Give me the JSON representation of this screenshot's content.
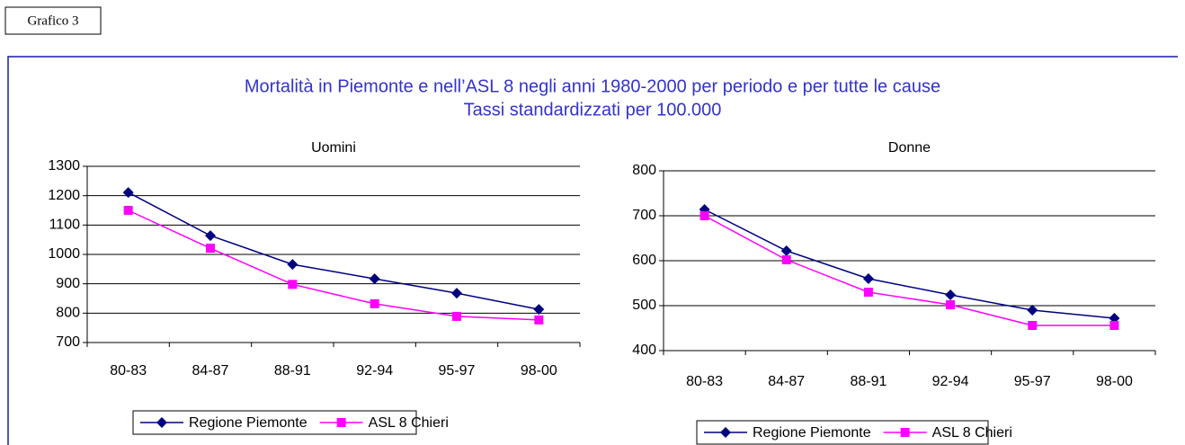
{
  "label": "Grafico 3",
  "title": "Mortalità in Piemonte e nell’ASL 8 negli anni 1980-2000 per periodo e per tutte le cause",
  "subtitle": "Tassi standardizzati per 100.000",
  "chart_data": [
    {
      "type": "line",
      "title": "Uomini",
      "categories": [
        "80-83",
        "84-87",
        "88-91",
        "92-94",
        "95-97",
        "98-00"
      ],
      "series": [
        {
          "name": "Regione Piemonte",
          "color": "#000080",
          "marker": "diamond",
          "values": [
            1211,
            1064,
            966,
            917,
            868,
            813
          ]
        },
        {
          "name": "ASL 8 Chieri",
          "color": "#ff00ff",
          "marker": "square",
          "values": [
            1150,
            1021,
            898,
            832,
            789,
            777
          ]
        }
      ],
      "ylim": [
        700,
        1300
      ],
      "yticks": [
        700,
        800,
        900,
        1000,
        1100,
        1200,
        1300
      ],
      "grid": true,
      "legend": "bottom"
    },
    {
      "type": "line",
      "title": "Donne",
      "categories": [
        "80-83",
        "84-87",
        "88-91",
        "92-94",
        "95-97",
        "98-00"
      ],
      "series": [
        {
          "name": "Regione Piemonte",
          "color": "#000080",
          "marker": "diamond",
          "values": [
            714,
            622,
            560,
            524,
            490,
            472
          ]
        },
        {
          "name": "ASL 8 Chieri",
          "color": "#ff00ff",
          "marker": "square",
          "values": [
            700,
            602,
            530,
            502,
            456,
            456
          ]
        }
      ],
      "ylim": [
        400,
        800
      ],
      "yticks": [
        400,
        500,
        600,
        700,
        800
      ],
      "grid": true,
      "legend": "bottom"
    }
  ]
}
